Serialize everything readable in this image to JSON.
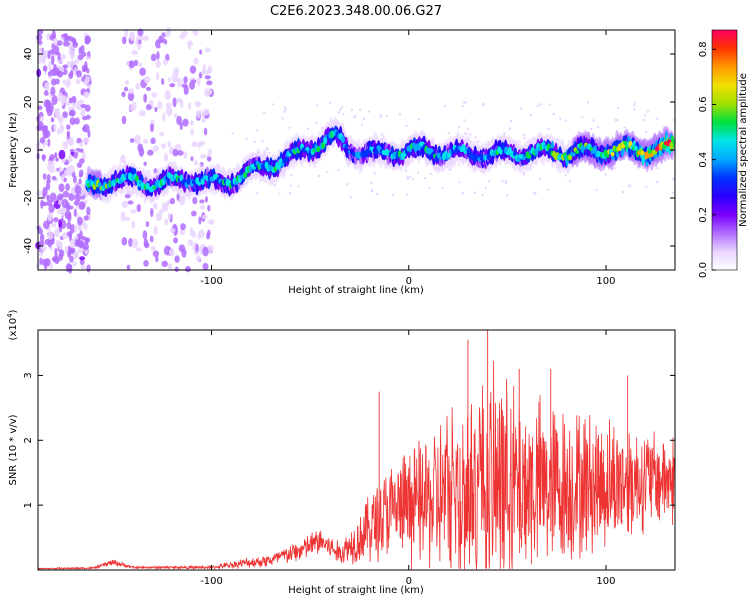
{
  "figure_title": "C2E6.2023.348.00.06.G27",
  "chart_data": [
    {
      "type": "heatmap",
      "panel": "top",
      "xlabel": "Height of straight line (km)",
      "ylabel": "Frequency (Hz)",
      "xlim": [
        -188,
        135
      ],
      "ylim": [
        -50,
        50
      ],
      "x_ticks": [
        -100,
        0,
        100
      ],
      "y_ticks": [
        -40,
        -20,
        0,
        20,
        40
      ],
      "colorbar": {
        "label": "Normalized spectral amplitude",
        "range": [
          0.0,
          0.87
        ],
        "ticks": [
          0.0,
          0.2,
          0.4,
          0.6,
          0.8
        ],
        "colors": [
          "#ffffff",
          "#e9d5ff",
          "#b06cff",
          "#7a00ff",
          "#2a00ff",
          "#0033ff",
          "#00aaff",
          "#00e5e5",
          "#00e040",
          "#a0e000",
          "#f0e000",
          "#ff9900",
          "#ff3300",
          "#ff0060"
        ]
      },
      "ridge": {
        "x": [
          -188,
          -160,
          -150,
          -130,
          -110,
          -95,
          -80,
          -60,
          -45,
          -38,
          -30,
          -15,
          0,
          20,
          40,
          60,
          80,
          100,
          120,
          135
        ],
        "center_hz": [
          -15,
          -16,
          -12,
          -14,
          -12,
          -14,
          -9,
          -3,
          3,
          6,
          0,
          -2,
          0,
          -1,
          -2,
          -1,
          -1,
          0,
          0,
          1
        ],
        "peak_amplitude": [
          0.05,
          0.6,
          0.5,
          0.5,
          0.45,
          0.5,
          0.5,
          0.45,
          0.55,
          0.5,
          0.4,
          0.45,
          0.5,
          0.45,
          0.45,
          0.5,
          0.55,
          0.6,
          0.75,
          0.87
        ]
      },
      "noise_regions": [
        {
          "x_range": [
            -188,
            -162
          ],
          "y_range": [
            -50,
            50
          ],
          "density": "high"
        },
        {
          "x_range": [
            -145,
            -100
          ],
          "y_range": [
            -50,
            50
          ],
          "density": "medium"
        }
      ]
    },
    {
      "type": "line",
      "panel": "bottom",
      "xlabel": "Height of straight line (km)",
      "ylabel": "SNR (10 * v/v)",
      "multiplier_label": "(x10",
      "multiplier_exp": "4",
      "multiplier_close": ")",
      "xlim": [
        -188,
        135
      ],
      "ylim": [
        0,
        3.7
      ],
      "x_ticks": [
        -100,
        0,
        100
      ],
      "y_ticks": [
        1,
        2,
        3
      ],
      "color": "#ee3333",
      "envelope": {
        "x": [
          -188,
          -160,
          -150,
          -140,
          -100,
          -85,
          -70,
          -55,
          -45,
          -35,
          -25,
          -15,
          -5,
          10,
          25,
          40,
          60,
          80,
          100,
          120,
          135
        ],
        "mean": [
          0.02,
          0.03,
          0.12,
          0.04,
          0.04,
          0.1,
          0.15,
          0.3,
          0.45,
          0.25,
          0.5,
          0.8,
          0.95,
          1.05,
          1.2,
          1.3,
          1.3,
          1.3,
          1.35,
          1.4,
          1.4
        ],
        "amplitude": [
          0.01,
          0.02,
          0.06,
          0.02,
          0.03,
          0.08,
          0.12,
          0.2,
          0.25,
          0.2,
          0.45,
          0.8,
          0.9,
          1.2,
          1.8,
          2.0,
          1.6,
          1.4,
          1.2,
          0.9,
          0.8
        ]
      },
      "spikes": [
        {
          "x": -15,
          "y": 2.75
        },
        {
          "x": 30,
          "y": 3.55
        },
        {
          "x": 40,
          "y": 3.7
        },
        {
          "x": 56,
          "y": 3.1
        },
        {
          "x": 72,
          "y": 3.1
        },
        {
          "x": 111,
          "y": 3.0
        }
      ]
    }
  ]
}
